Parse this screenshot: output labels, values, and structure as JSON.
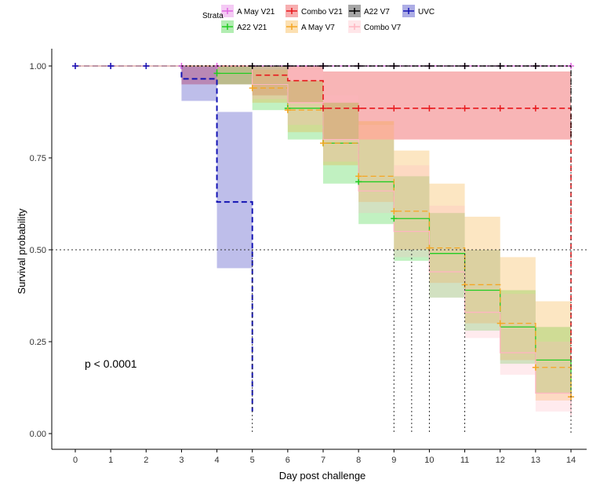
{
  "chart_data": {
    "type": "survival",
    "xlabel": "Day post challenge",
    "ylabel": "Survival probability",
    "xlim": [
      0,
      14
    ],
    "ylim": [
      0,
      1
    ],
    "xticks": [
      0,
      1,
      2,
      3,
      4,
      5,
      6,
      7,
      8,
      9,
      10,
      11,
      12,
      13,
      14
    ],
    "xtick_labels": [
      "0",
      "1",
      "2",
      "3",
      "4",
      "5",
      "6",
      "7",
      "8",
      "9",
      "10",
      "11",
      "12",
      "13",
      "14"
    ],
    "yticks": [
      0,
      0.25,
      0.5,
      0.75,
      1.0
    ],
    "ytick_labels": [
      "0.00",
      "0.25",
      "0.50",
      "0.75",
      "1.00"
    ],
    "pvalue_label": "p < 0.0001",
    "median_line": 0.5,
    "median_days": [
      5,
      9,
      9.5,
      10,
      11
    ],
    "legend": {
      "title": "Strata",
      "position": "top"
    },
    "series": [
      {
        "name": "A May V21",
        "color": "#e066e0",
        "steps": [
          [
            0,
            1
          ],
          [
            7,
            1
          ],
          [
            14,
            1
          ]
        ],
        "band": [],
        "censor": [
          0,
          1,
          2,
          3,
          4,
          5,
          6,
          7,
          8,
          9,
          10,
          11,
          12,
          13,
          14
        ]
      },
      {
        "name": "Combo V21",
        "color": "#e8181c",
        "steps": [
          [
            0,
            1
          ],
          [
            3,
            1
          ],
          [
            5,
            0.975
          ],
          [
            6,
            0.96
          ],
          [
            7,
            0.885
          ],
          [
            14,
            0.885
          ],
          [
            14,
            0.175
          ]
        ],
        "band": [
          [
            3,
            0.95,
            1
          ],
          [
            5,
            0.92,
            1
          ],
          [
            6,
            0.9,
            1
          ],
          [
            7,
            0.8,
            0.985
          ],
          [
            14,
            0.8,
            0.985
          ]
        ],
        "censor": [
          7,
          8,
          9,
          10,
          11,
          12,
          13
        ]
      },
      {
        "name": "A22 V7",
        "color": "#000000",
        "steps": [
          [
            0,
            1
          ],
          [
            14,
            1
          ],
          [
            14,
            0.8
          ]
        ],
        "band": [],
        "censor": [
          5,
          6,
          7,
          8,
          9,
          10,
          11,
          12,
          13
        ]
      },
      {
        "name": "UVC",
        "color": "#1414b4",
        "steps": [
          [
            0,
            1
          ],
          [
            3,
            1
          ],
          [
            3,
            0.965
          ],
          [
            4,
            0.965
          ],
          [
            4,
            0.63
          ],
          [
            5,
            0.63
          ],
          [
            5,
            0.06
          ]
        ],
        "band": [
          [
            3,
            0.905,
            1
          ],
          [
            4,
            0.45,
            0.875
          ],
          [
            5,
            0.45,
            0.875
          ]
        ],
        "censor": [
          0,
          1,
          2
        ]
      },
      {
        "name": "A22 V21",
        "color": "#22cc22",
        "steps": [
          [
            0,
            1
          ],
          [
            4,
            0.98
          ],
          [
            5,
            0.95
          ],
          [
            6,
            0.885
          ],
          [
            7,
            0.79
          ],
          [
            8,
            0.685
          ],
          [
            9,
            0.585
          ],
          [
            10,
            0.49
          ],
          [
            11,
            0.39
          ],
          [
            12,
            0.29
          ],
          [
            13,
            0.2
          ],
          [
            14,
            0.1
          ]
        ],
        "band": [
          [
            4,
            0.95,
            1
          ],
          [
            5,
            0.88,
            1
          ],
          [
            6,
            0.8,
            0.96
          ],
          [
            7,
            0.68,
            0.9
          ],
          [
            8,
            0.57,
            0.8
          ],
          [
            9,
            0.47,
            0.7
          ],
          [
            10,
            0.37,
            0.6
          ],
          [
            11,
            0.28,
            0.5
          ],
          [
            12,
            0.19,
            0.39
          ],
          [
            13,
            0.11,
            0.29
          ],
          [
            14,
            0.04,
            0.18
          ]
        ],
        "censor": [
          4,
          6,
          7,
          8,
          9
        ]
      },
      {
        "name": "A May V7",
        "color": "#f5a623",
        "steps": [
          [
            0,
            1
          ],
          [
            5,
            0.94
          ],
          [
            6,
            0.88
          ],
          [
            7,
            0.79
          ],
          [
            8,
            0.7
          ],
          [
            9,
            0.605
          ],
          [
            10,
            0.505
          ],
          [
            11,
            0.405
          ],
          [
            12,
            0.3
          ],
          [
            13,
            0.18
          ],
          [
            14,
            0.1
          ]
        ],
        "band": [
          [
            5,
            0.9,
            0.99
          ],
          [
            6,
            0.82,
            0.96
          ],
          [
            7,
            0.73,
            0.9
          ],
          [
            8,
            0.63,
            0.85
          ],
          [
            9,
            0.5,
            0.77
          ],
          [
            10,
            0.41,
            0.68
          ],
          [
            11,
            0.3,
            0.59
          ],
          [
            12,
            0.2,
            0.48
          ],
          [
            13,
            0.09,
            0.36
          ],
          [
            14,
            0.03,
            0.25
          ]
        ],
        "censor": [
          5,
          6,
          7,
          8,
          9,
          10,
          11,
          12,
          13,
          14
        ]
      },
      {
        "name": "Combo V7",
        "color": "#ffb6c1",
        "steps": [
          [
            0,
            1
          ],
          [
            5,
            0.95
          ],
          [
            6,
            0.9
          ],
          [
            7,
            0.8
          ],
          [
            8,
            0.66
          ],
          [
            9,
            0.55
          ],
          [
            10,
            0.44
          ],
          [
            11,
            0.33
          ],
          [
            12,
            0.22
          ],
          [
            13,
            0.11
          ],
          [
            14,
            0.05
          ]
        ],
        "band": [
          [
            5,
            0.91,
            1
          ],
          [
            6,
            0.84,
            0.99
          ],
          [
            7,
            0.74,
            0.92
          ],
          [
            8,
            0.6,
            0.84
          ],
          [
            9,
            0.48,
            0.73
          ],
          [
            10,
            0.37,
            0.62
          ],
          [
            11,
            0.26,
            0.5
          ],
          [
            12,
            0.16,
            0.38
          ],
          [
            13,
            0.06,
            0.25
          ],
          [
            14,
            0.02,
            0.15
          ]
        ],
        "censor": []
      }
    ]
  }
}
